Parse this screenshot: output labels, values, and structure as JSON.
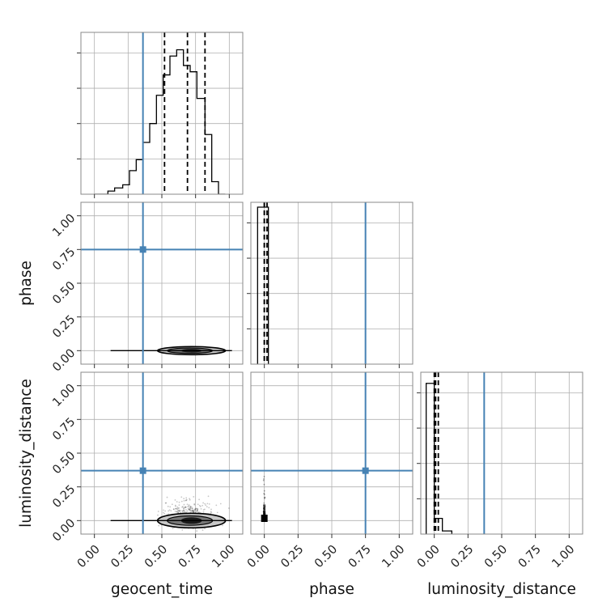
{
  "chart_data": {
    "type": "corner",
    "parameters": [
      "geocent_time",
      "phase",
      "luminosity_distance"
    ],
    "axis_range": [
      -0.1,
      1.1
    ],
    "tick_labels": [
      "0.00",
      "0.25",
      "0.50",
      "0.75",
      "1.00"
    ],
    "tick_values": [
      0,
      0.25,
      0.5,
      0.75,
      1.0
    ],
    "grid": true,
    "colors": {
      "truth": "#4682b4",
      "samples": "#000000",
      "grid": "#b0b0b0"
    },
    "truths": {
      "geocent_time": 0.36,
      "phase": 0.75,
      "luminosity_distance": 0.37
    },
    "quantiles": {
      "geocent_time": [
        0.52,
        0.69,
        0.82
      ],
      "phase": [
        0.0,
        0.0,
        0.02
      ],
      "luminosity_distance": [
        0.0,
        0.01,
        0.03
      ]
    },
    "histograms": {
      "geocent_time": {
        "bin_edges": [
          0.0,
          0.05,
          0.1,
          0.15,
          0.21,
          0.26,
          0.31,
          0.36,
          0.41,
          0.46,
          0.51,
          0.56,
          0.61,
          0.66,
          0.71,
          0.76,
          0.82,
          0.87,
          0.92,
          0.97
        ],
        "counts": [
          0.0,
          0.0,
          0.02,
          0.04,
          0.06,
          0.15,
          0.22,
          0.33,
          0.45,
          0.63,
          0.76,
          0.88,
          0.92,
          0.82,
          0.78,
          0.61,
          0.38,
          0.08,
          0.0
        ]
      },
      "phase": {
        "bin_edges": [
          -0.05,
          0.0,
          0.03
        ],
        "counts": [
          1.0,
          1.0
        ]
      },
      "luminosity_distance": {
        "bin_edges": [
          -0.06,
          0.0,
          0.06,
          0.13
        ],
        "counts": [
          0.96,
          0.1,
          0.02
        ]
      }
    },
    "contours_2d": [
      {
        "x": "geocent_time",
        "y": "phase",
        "center": [
          0.72,
          0.0
        ],
        "samples_x_range": [
          0.15,
          1.0
        ]
      },
      {
        "x": "geocent_time",
        "y": "luminosity_distance",
        "center": [
          0.72,
          0.0
        ],
        "samples_x_range": [
          0.1,
          1.0
        ]
      },
      {
        "x": "phase",
        "y": "luminosity_distance",
        "center": [
          0.0,
          0.0
        ],
        "samples_y_range": [
          0.0,
          0.3
        ]
      }
    ]
  }
}
